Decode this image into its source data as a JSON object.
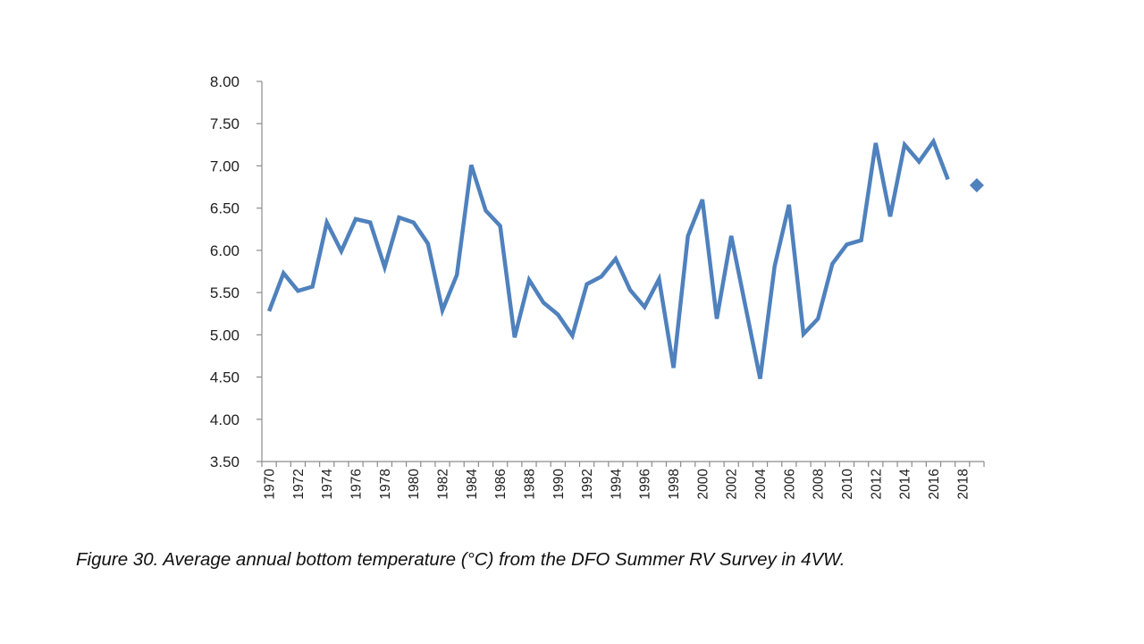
{
  "caption": "Figure 30. Average annual bottom temperature (°C) from the DFO Summer RV Survey in 4VW.",
  "chart_data": {
    "type": "line",
    "title": "",
    "xlabel": "",
    "ylabel": "",
    "ylim": [
      3.5,
      8.0
    ],
    "yticks": [
      "3.50",
      "4.00",
      "4.50",
      "5.00",
      "5.50",
      "6.00",
      "6.50",
      "7.00",
      "7.50",
      "8.00"
    ],
    "xlim": [
      1970,
      2019
    ],
    "xticks": [
      "1970",
      "1972",
      "1974",
      "1976",
      "1978",
      "1980",
      "1982",
      "1984",
      "1986",
      "1988",
      "1990",
      "1992",
      "1994",
      "1996",
      "1998",
      "2000",
      "2002",
      "2004",
      "2006",
      "2008",
      "2010",
      "2012",
      "2014",
      "2016",
      "2018"
    ],
    "grid": false,
    "legend": "none",
    "line_color": "#4F81BD",
    "series": [
      {
        "kind": "line",
        "x": [
          1970,
          1971,
          1972,
          1973,
          1974,
          1975,
          1976,
          1977,
          1978,
          1979,
          1980,
          1981,
          1982,
          1983,
          1984,
          1985,
          1986,
          1987,
          1988,
          1989,
          1990,
          1991,
          1992,
          1993,
          1994,
          1995,
          1996,
          1997,
          1998,
          1999,
          2000,
          2001,
          2002,
          2003,
          2004,
          2005,
          2006,
          2007,
          2008,
          2009,
          2010,
          2011,
          2012,
          2013,
          2014,
          2015,
          2016,
          2017
        ],
        "values": [
          5.28,
          5.73,
          5.52,
          5.57,
          6.33,
          5.99,
          6.37,
          6.33,
          5.8,
          6.39,
          6.33,
          6.08,
          5.29,
          5.71,
          7.01,
          6.47,
          6.29,
          4.97,
          5.65,
          5.38,
          5.24,
          4.99,
          5.6,
          5.69,
          5.9,
          5.53,
          5.33,
          5.66,
          4.61,
          6.17,
          6.6,
          5.19,
          6.17,
          5.32,
          4.48,
          5.81,
          6.54,
          5.01,
          5.19,
          5.84,
          6.07,
          6.12,
          7.27,
          6.4,
          7.25,
          7.05,
          7.29,
          6.84
        ]
      },
      {
        "kind": "marker",
        "marker": "diamond",
        "x": [
          2019
        ],
        "values": [
          6.77
        ]
      }
    ]
  }
}
